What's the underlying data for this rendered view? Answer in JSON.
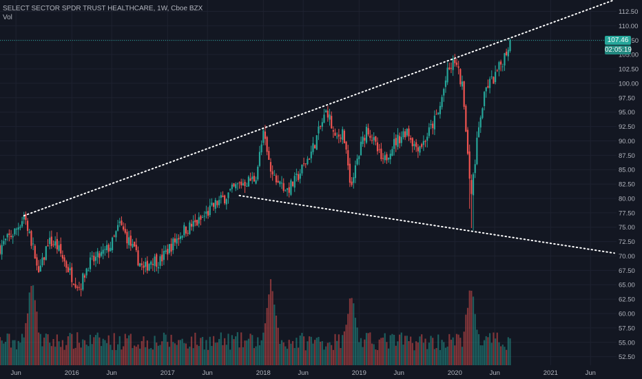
{
  "header": {
    "symbol_title": "SELECT SECTOR SPDR TRUST HEALTHCARE, 1W, Cboe BZX",
    "vol_label": "Vol"
  },
  "badges": {
    "last_price": "107.46",
    "bar_countdown": "02:05:19"
  },
  "colors": {
    "background": "#131722",
    "grid": "#1e2230",
    "up": "#26a69a",
    "down": "#ef5350",
    "trendline": "#ffffff",
    "axis_text": "#b2b5be"
  },
  "chart_data": {
    "type": "candlestick",
    "title": "SELECT SECTOR SPDR TRUST HEALTHCARE, 1W, Cboe BZX",
    "interval": "1W",
    "x_ticks": [
      "Jun",
      "2016",
      "Jun",
      "2017",
      "Jun",
      "2018",
      "Jun",
      "2019",
      "Jun",
      "2020",
      "Jun",
      "2021",
      "Jun"
    ],
    "x_range": [
      "2015-04",
      "2021-09"
    ],
    "y_ticks": [
      112.5,
      110.0,
      107.5,
      105.0,
      102.5,
      100.0,
      97.5,
      95.0,
      92.5,
      90.0,
      87.5,
      85.0,
      82.5,
      80.0,
      77.5,
      75.0,
      72.5,
      70.0,
      67.5,
      65.0,
      62.5,
      60.0,
      57.5,
      55.0,
      52.5
    ],
    "y_range": [
      51.5,
      114.0
    ],
    "last_price": 107.46,
    "price_path": [
      [
        "2015-04",
        71.5
      ],
      [
        "2015-06",
        74.5
      ],
      [
        "2015-07",
        77.0
      ],
      [
        "2015-08",
        72.0
      ],
      [
        "2015-09",
        67.0
      ],
      [
        "2015-10",
        72.5
      ],
      [
        "2015-11",
        72.0
      ],
      [
        "2016-01",
        66.5
      ],
      [
        "2016-02",
        64.5
      ],
      [
        "2016-03",
        68.5
      ],
      [
        "2016-05",
        70.5
      ],
      [
        "2016-06",
        72.0
      ],
      [
        "2016-07",
        75.5
      ],
      [
        "2016-08",
        73.0
      ],
      [
        "2016-10",
        67.5
      ],
      [
        "2016-11",
        69.5
      ],
      [
        "2016-12",
        69.0
      ],
      [
        "2017-01",
        71.0
      ],
      [
        "2017-03",
        74.5
      ],
      [
        "2017-05",
        76.0
      ],
      [
        "2017-07",
        79.0
      ],
      [
        "2017-08",
        80.0
      ],
      [
        "2017-10",
        82.5
      ],
      [
        "2017-12",
        83.5
      ],
      [
        "2018-01",
        91.0
      ],
      [
        "2018-02",
        84.0
      ],
      [
        "2018-04",
        81.5
      ],
      [
        "2018-05",
        83.0
      ],
      [
        "2018-07",
        88.0
      ],
      [
        "2018-09",
        95.5
      ],
      [
        "2018-10",
        90.0
      ],
      [
        "2018-11",
        92.0
      ],
      [
        "2018-12",
        82.0
      ],
      [
        "2019-01",
        88.0
      ],
      [
        "2019-02",
        92.5
      ],
      [
        "2019-04",
        86.0
      ],
      [
        "2019-05",
        89.0
      ],
      [
        "2019-07",
        92.0
      ],
      [
        "2019-08",
        89.0
      ],
      [
        "2019-09",
        89.5
      ],
      [
        "2019-11",
        95.0
      ],
      [
        "2019-12",
        101.5
      ],
      [
        "2020-01",
        104.0
      ],
      [
        "2020-02",
        99.0
      ],
      [
        "2020-03",
        80.0
      ],
      [
        "2020-04",
        93.0
      ],
      [
        "2020-05",
        99.5
      ],
      [
        "2020-06",
        101.0
      ],
      [
        "2020-07",
        104.0
      ],
      [
        "2020-08",
        107.46
      ]
    ],
    "volume": {
      "scale_note": "relative weekly volume (0-1), no axis printed",
      "spikes": [
        [
          "2015-08",
          1.0
        ],
        [
          "2018-02",
          1.0
        ],
        [
          "2018-12",
          0.85
        ],
        [
          "2020-03",
          0.95
        ]
      ]
    },
    "trendlines": [
      {
        "style": "dotted",
        "from": [
          "2015-07",
          77.0
        ],
        "to": [
          "2021-09",
          114.5
        ]
      },
      {
        "style": "dotted",
        "from": [
          "2017-10",
          80.5
        ],
        "to": [
          "2021-09",
          70.5
        ]
      }
    ]
  }
}
